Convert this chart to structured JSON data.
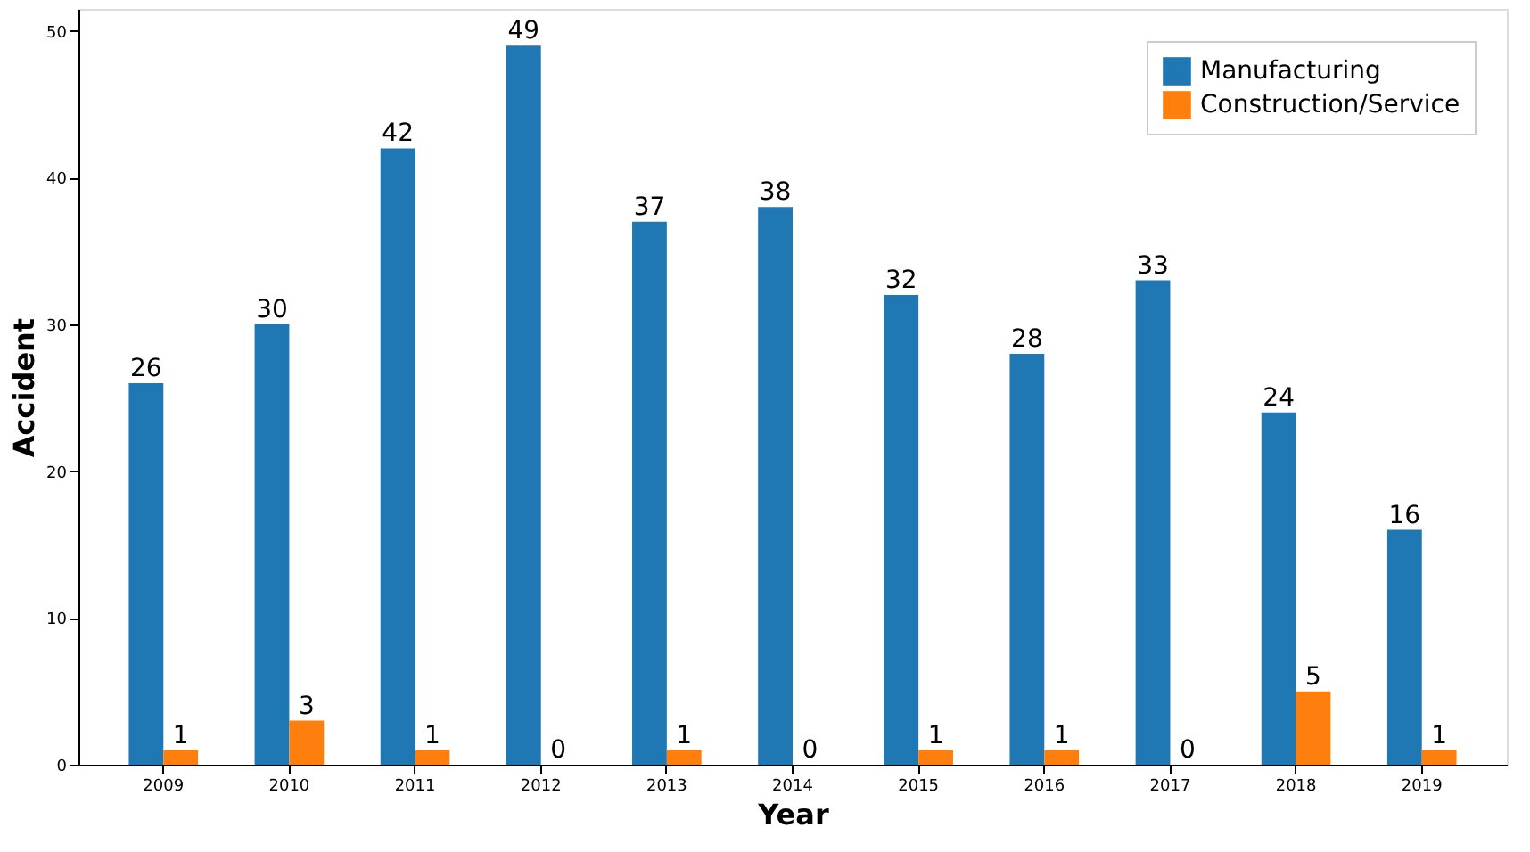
{
  "chart_data": {
    "type": "bar",
    "xlabel": "Year",
    "ylabel": "Accident",
    "categories": [
      "2009",
      "2010",
      "2011",
      "2012",
      "2013",
      "2014",
      "2015",
      "2016",
      "2017",
      "2018",
      "2019"
    ],
    "series": [
      {
        "name": "Manufacturing",
        "color": "#1f77b4",
        "values": [
          26,
          30,
          42,
          49,
          37,
          38,
          32,
          28,
          33,
          24,
          16
        ]
      },
      {
        "name": "Construction/Service",
        "color": "#ff7f0e",
        "values": [
          1,
          3,
          1,
          0,
          1,
          0,
          1,
          1,
          0,
          5,
          1
        ]
      }
    ],
    "ylim": [
      0,
      51.5
    ],
    "yticks": [
      0,
      10,
      20,
      30,
      40,
      50
    ],
    "grid": false,
    "legend": "top right",
    "data_labels": true
  }
}
